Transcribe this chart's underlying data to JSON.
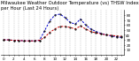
{
  "title": "Milwaukee Weather Outdoor Temperature (vs) THSW Index per Hour (Last 24 Hours)",
  "hours": [
    0,
    1,
    2,
    3,
    4,
    5,
    6,
    7,
    8,
    9,
    10,
    11,
    12,
    13,
    14,
    15,
    16,
    17,
    18,
    19,
    20,
    21,
    22,
    23
  ],
  "temp": [
    30,
    30,
    29,
    29,
    28,
    28,
    28,
    29,
    35,
    45,
    52,
    57,
    57,
    55,
    52,
    58,
    52,
    47,
    44,
    42,
    40,
    39,
    38,
    37
  ],
  "thsw": [
    30,
    30,
    29,
    29,
    28,
    28,
    28,
    29,
    48,
    68,
    80,
    82,
    75,
    65,
    62,
    72,
    60,
    52,
    47,
    43,
    40,
    38,
    36,
    35
  ],
  "temp_color": "#cc0000",
  "thsw_color": "#0000cc",
  "dot_color": "#000000",
  "bg_color": "#ffffff",
  "grid_color": "#999999",
  "ylim": [
    0,
    90
  ],
  "yticks": [
    10,
    20,
    30,
    40,
    50,
    60,
    70,
    80
  ],
  "title_fontsize": 3.8,
  "tick_fontsize": 3.0,
  "line_width": 0.7,
  "marker_size": 1.0
}
